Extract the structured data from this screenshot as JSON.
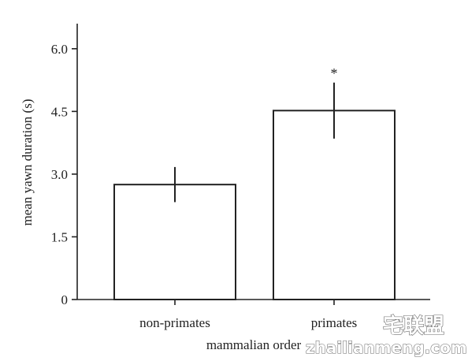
{
  "chart_data": {
    "type": "bar",
    "categories": [
      "non-primates",
      "primates"
    ],
    "values": [
      2.75,
      4.52
    ],
    "errors": [
      0.42,
      0.67
    ],
    "annotations": [
      "",
      "*"
    ],
    "yticks": [
      "0",
      "1.5",
      "3.0",
      "4.5",
      "6.0"
    ],
    "ytick_values": [
      0,
      1.5,
      3.0,
      4.5,
      6.0
    ],
    "ylim": [
      0,
      6.6
    ],
    "xlabel": "mammalian order",
    "ylabel": "mean yawn duration (s)",
    "grid": false,
    "colors": {
      "bar_fill": "#ffffff",
      "bar_stroke": "#222222",
      "axis": "#222222"
    }
  },
  "watermark": {
    "chinese": "宅联盟",
    "url": "zhailianmeng.com"
  }
}
